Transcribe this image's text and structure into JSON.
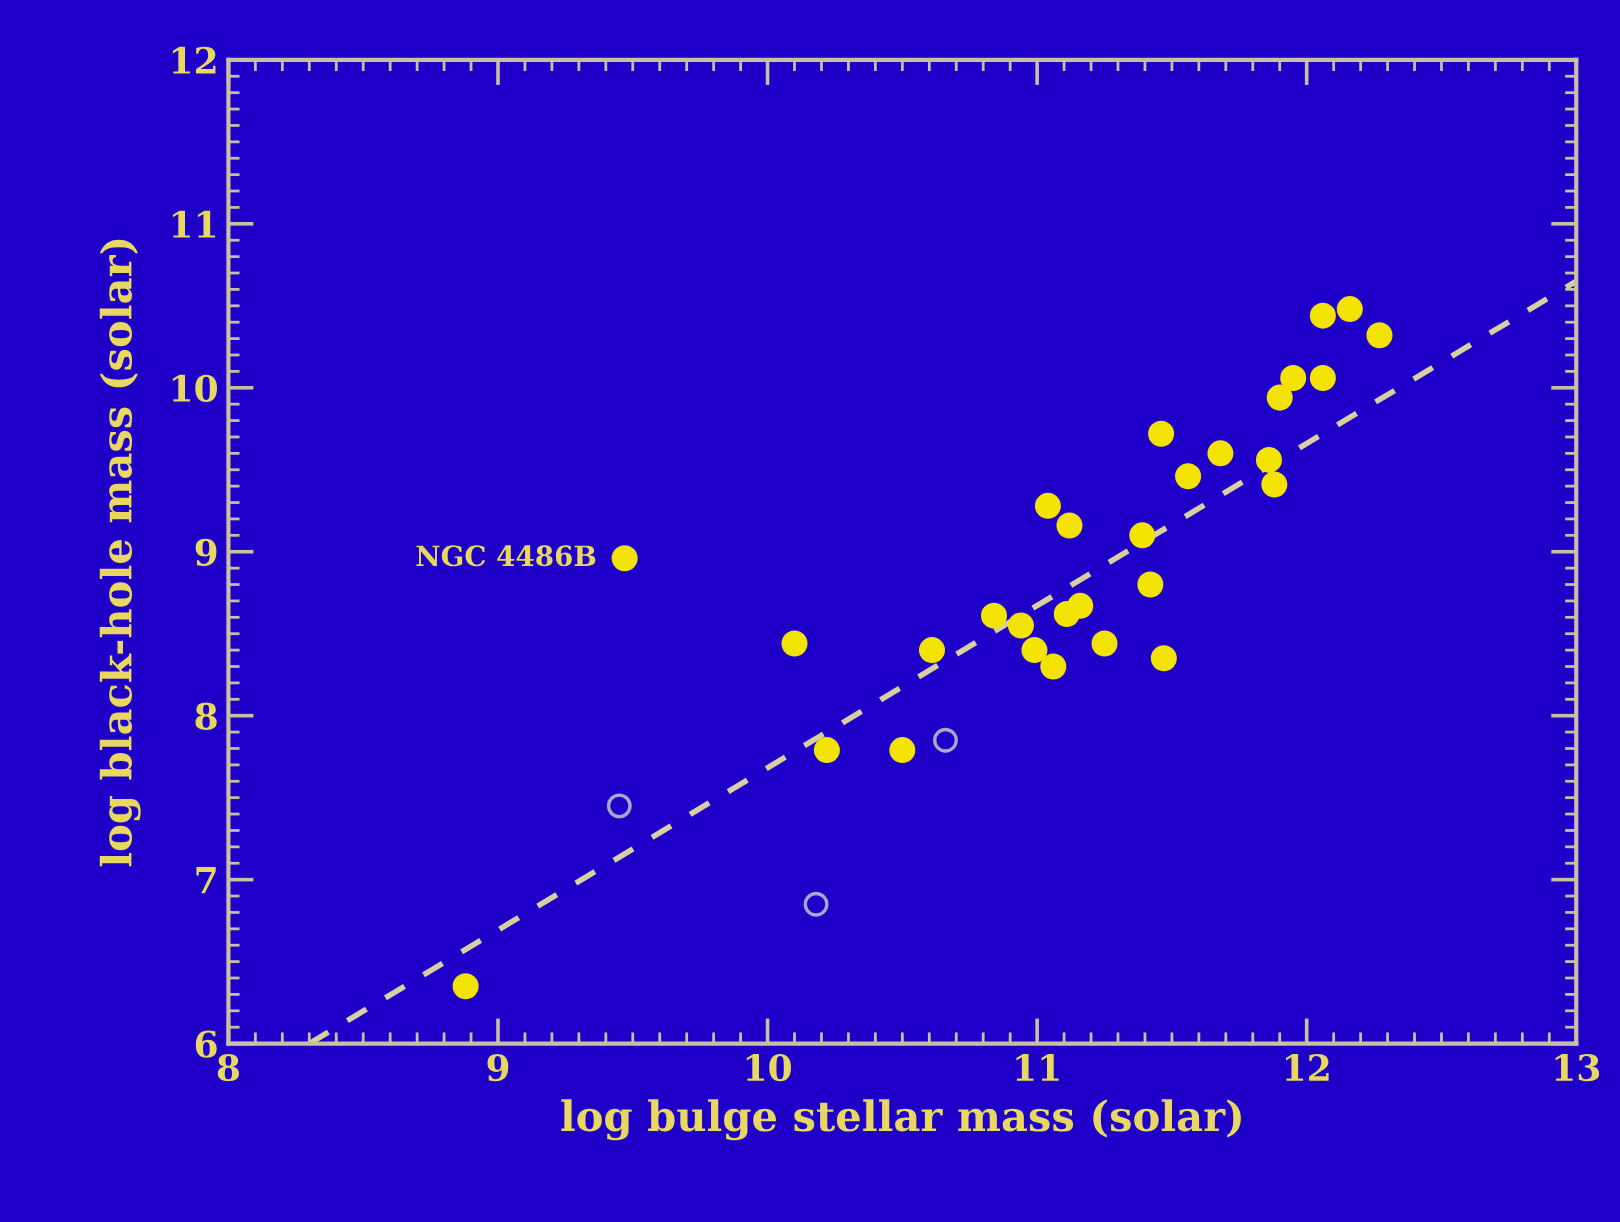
{
  "chart_data": {
    "type": "scatter",
    "xlabel": "log bulge stellar mass (solar)",
    "ylabel": "log black-hole mass (solar)",
    "xlim": [
      8,
      13
    ],
    "ylim": [
      6,
      12
    ],
    "xticks": [
      8,
      9,
      10,
      11,
      12,
      13
    ],
    "yticks": [
      6,
      7,
      8,
      9,
      10,
      11,
      12
    ],
    "grid": false,
    "legend": false,
    "series": [
      {
        "color": "#f2e400",
        "marker": "circle",
        "x": [
          8.88,
          9.47,
          10.1,
          10.22,
          10.5,
          10.61,
          10.84,
          10.94,
          10.99,
          11.06,
          11.11,
          11.16,
          11.25,
          11.47,
          11.42,
          11.39,
          11.04,
          11.12,
          11.46,
          11.56,
          11.68,
          11.86,
          11.88,
          11.9,
          11.95,
          12.06,
          12.06,
          12.16,
          12.27
        ],
        "values": [
          6.35,
          8.96,
          8.44,
          7.79,
          7.79,
          8.4,
          8.61,
          8.55,
          8.4,
          8.3,
          8.62,
          8.67,
          8.44,
          8.35,
          8.8,
          9.1,
          9.28,
          9.16,
          9.72,
          9.46,
          9.6,
          9.56,
          9.41,
          9.94,
          10.06,
          10.06,
          10.44,
          10.48,
          10.32
        ]
      },
      {
        "color": "#a8a8c8",
        "marker": "circle",
        "x": [
          9.45,
          10.18,
          10.66
        ],
        "values": [
          7.45,
          6.85,
          7.85
        ]
      },
      {
        "type": "line",
        "line_style": "dashed",
        "color": "#d8d0a0",
        "x": [
          8.3,
          13
        ],
        "values": [
          6.0,
          10.65
        ]
      }
    ],
    "annotations": [
      {
        "text": "NGC 4486B",
        "x": 9.47,
        "y": 8.96
      }
    ]
  }
}
